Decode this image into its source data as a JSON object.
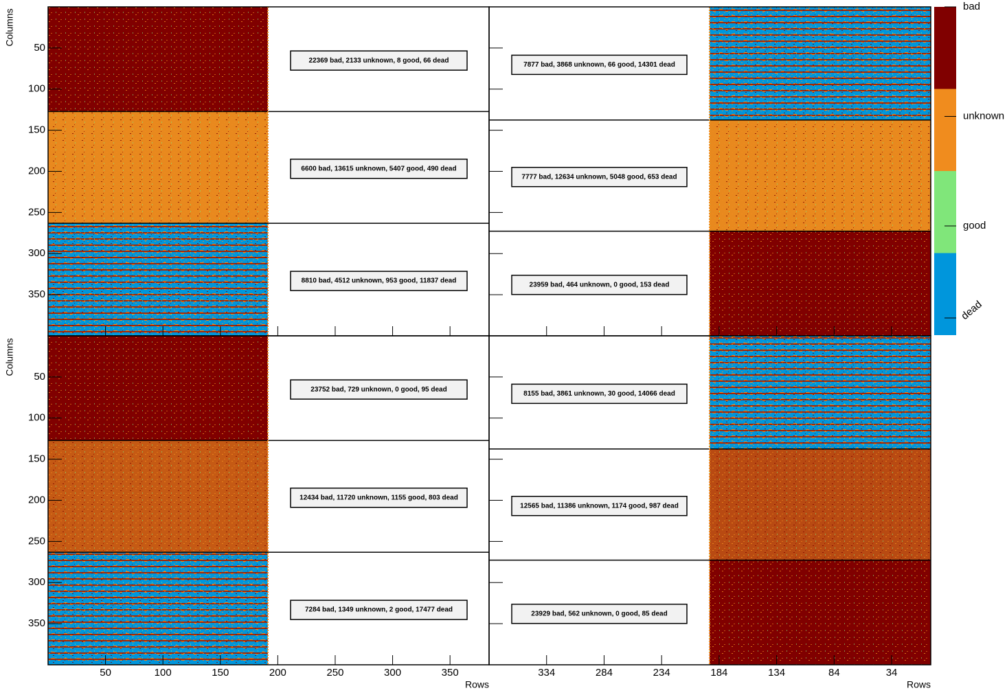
{
  "chart_data": {
    "type": "heatmap",
    "x_label": "Rows",
    "y_label": "Columns",
    "ylim": [
      0,
      400
    ],
    "yticks": [
      50,
      100,
      150,
      200,
      250,
      300,
      350
    ],
    "legend": {
      "categories": [
        "bad",
        "unknown",
        "good",
        "dead"
      ],
      "colors": [
        "#800000",
        "#f08c1e",
        "#80e67a",
        "#0096dc"
      ]
    },
    "x_axes": [
      {
        "xlim": [
          0,
          384
        ],
        "xticks": [
          50,
          100,
          150,
          200,
          250,
          300,
          350
        ]
      },
      {
        "xlim": [
          384,
          0
        ],
        "xticks": [
          334,
          284,
          234,
          184,
          134,
          84,
          34
        ]
      }
    ],
    "blocks": [
      {
        "left": [
          {
            "label": "22369 bad, 2133 unknown, 8 good, 66 dead",
            "color": "#800000",
            "stripe_color": null
          },
          {
            "label": "6600 bad, 13615 unknown, 5407 good, 490 dead",
            "color": "#e8891e",
            "stripe_color": null
          },
          {
            "label": "8810 bad, 4512 unknown, 953 good, 11837 dead",
            "color": "#0096dc",
            "stripe_color": "#a02808"
          }
        ],
        "right": [
          {
            "label": "7877 bad, 3868 unknown, 66 good, 14301 dead",
            "color": "#0096dc",
            "stripe_color": "#a02808"
          },
          {
            "label": "7777 bad, 12634 unknown, 5048 good, 653 dead",
            "color": "#e8891e",
            "stripe_color": null
          },
          {
            "label": "23959 bad, 464 unknown, 0 good, 153 dead",
            "color": "#800000",
            "stripe_color": null
          }
        ]
      },
      {
        "left": [
          {
            "label": "23752 bad, 729 unknown, 0 good, 95 dead",
            "color": "#800000",
            "stripe_color": null
          },
          {
            "label": "12434 bad, 11720 unknown, 1155 good, 803 dead",
            "color": "#c55a14",
            "stripe_color": null
          },
          {
            "label": "7284 bad, 1349 unknown, 2 good, 17477 dead",
            "color": "#0096dc",
            "stripe_color": "#a02808"
          }
        ],
        "right": [
          {
            "label": "8155 bad, 3861 unknown, 30 good, 14066 dead",
            "color": "#0096dc",
            "stripe_color": "#a02808"
          },
          {
            "label": "12565 bad, 11386 unknown, 1174 good, 987 dead",
            "color": "#b84a12",
            "stripe_color": null
          },
          {
            "label": "23929 bad, 562 unknown, 0 good, 85 dead",
            "color": "#800000",
            "stripe_color": null
          }
        ]
      }
    ]
  }
}
